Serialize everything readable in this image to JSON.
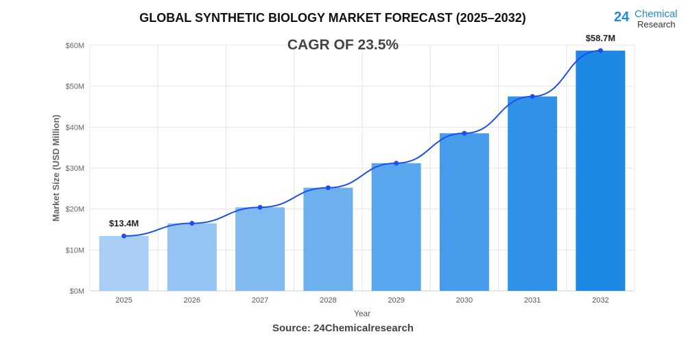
{
  "title": "GLOBAL SYNTHETIC BIOLOGY MARKET FORECAST (2025–2032)",
  "logo": {
    "number": "24",
    "line1": "Chemical",
    "line2": "Research"
  },
  "source": "Source: 24Chemicalresearch",
  "chart_data": {
    "type": "bar",
    "subtitle": "CAGR OF 23.5%",
    "xlabel": "Year",
    "ylabel": "Market Size (USD Million)",
    "categories": [
      "2025",
      "2026",
      "2027",
      "2028",
      "2029",
      "2030",
      "2031",
      "2032"
    ],
    "values": [
      13.4,
      16.5,
      20.4,
      25.2,
      31.2,
      38.5,
      47.5,
      58.7
    ],
    "ylim": [
      0,
      60
    ],
    "yticks": [
      {
        "v": 0,
        "label": "$0M"
      },
      {
        "v": 10,
        "label": "$10M"
      },
      {
        "v": 20,
        "label": "$20M"
      },
      {
        "v": 30,
        "label": "$30M"
      },
      {
        "v": 40,
        "label": "$40M"
      },
      {
        "v": 50,
        "label": "$50M"
      },
      {
        "v": 60,
        "label": "$60M"
      }
    ],
    "data_labels": [
      {
        "index": 0,
        "label": "$13.4M"
      },
      {
        "index": 7,
        "label": "$58.7M"
      }
    ],
    "trend_line": true,
    "grid": true,
    "colors": {
      "bar_start": "#a9cef5",
      "bar_end": "#1e88e5",
      "line": "#1a4ff0"
    }
  }
}
